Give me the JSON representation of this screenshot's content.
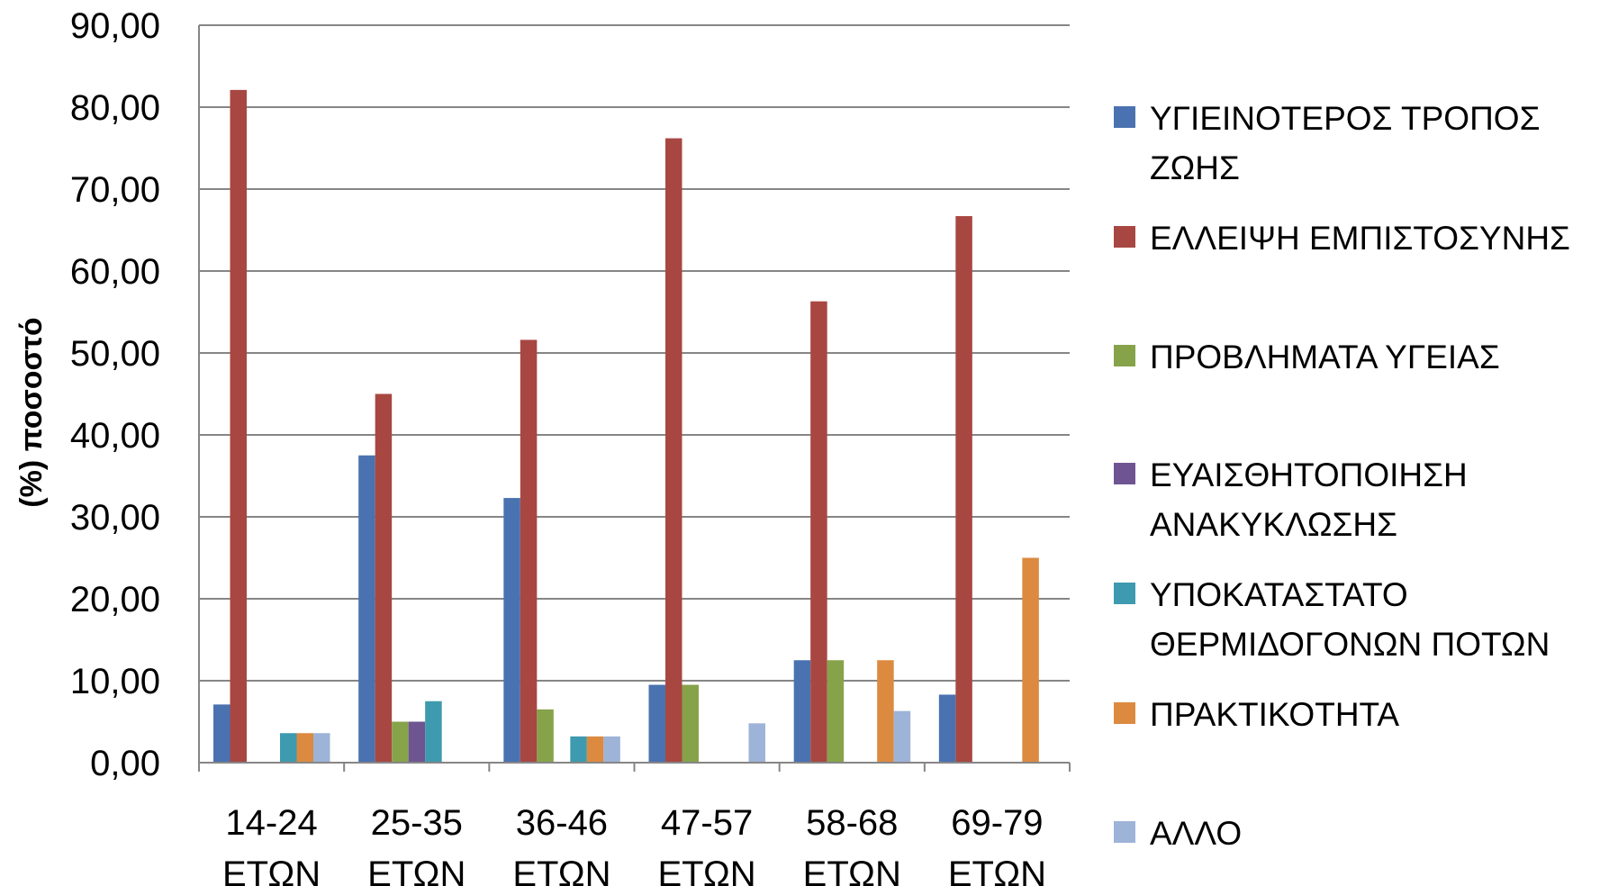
{
  "chart_data": {
    "type": "bar",
    "ylabel": "(%) ποσοστό",
    "ylim": [
      0,
      90
    ],
    "yticks": [
      "0,00",
      "10,00",
      "20,00",
      "30,00",
      "40,00",
      "50,00",
      "60,00",
      "70,00",
      "80,00",
      "90,00"
    ],
    "grid": true,
    "legend_position": "right",
    "categories": [
      [
        "14-24",
        "ΕΤΩΝ"
      ],
      [
        "25-35",
        "ΕΤΩΝ"
      ],
      [
        "36-46",
        "ΕΤΩΝ"
      ],
      [
        "47-57",
        "ΕΤΩΝ"
      ],
      [
        "58-68",
        "ΕΤΩΝ"
      ],
      [
        "69-79",
        "ΕΤΩΝ"
      ]
    ],
    "series": [
      {
        "name": [
          "ΥΓΙΕΙΝΟΤΕΡΟΣ ΤΡΟΠΟΣ",
          "ΖΩΗΣ"
        ],
        "color": "#4a72b0",
        "values": [
          7.1,
          37.5,
          32.3,
          9.5,
          12.5,
          8.3
        ]
      },
      {
        "name": [
          "ΕΛΛΕΙΨΗ ΕΜΠΙΣΤΟΣΥΝΗΣ"
        ],
        "color": "#a84742",
        "values": [
          82.1,
          45.0,
          51.6,
          76.2,
          56.3,
          66.7
        ]
      },
      {
        "name": [
          "ΠΡΟΒΛΗΜΑΤΑ ΥΓΕΙΑΣ"
        ],
        "color": "#86a34a",
        "values": [
          0,
          5.0,
          6.5,
          9.5,
          12.5,
          0
        ]
      },
      {
        "name": [
          "ΕΥΑΙΣΘΗΤΟΠΟΙΗΣΗ",
          "ΑΝΑΚΥΚΛΩΣΗΣ"
        ],
        "color": "#6e5592",
        "values": [
          0,
          5.0,
          0,
          0,
          0,
          0
        ]
      },
      {
        "name": [
          "ΥΠΟΚΑΤΑΣΤΑΤΟ",
          "ΘΕΡΜΙΔΟΓΟΝΩΝ ΠΟΤΩΝ"
        ],
        "color": "#3e9aae",
        "values": [
          3.6,
          7.5,
          3.2,
          0,
          0,
          0
        ]
      },
      {
        "name": [
          "ΠΡΑΚΤΙΚΟΤΗΤΑ"
        ],
        "color": "#dc8a40",
        "values": [
          3.6,
          0,
          3.2,
          0,
          12.5,
          25.0
        ]
      },
      {
        "name": [
          "ΑΛΛΟ"
        ],
        "color": "#9eb3d8",
        "values": [
          3.6,
          0,
          3.2,
          4.8,
          6.3,
          0
        ]
      }
    ]
  }
}
